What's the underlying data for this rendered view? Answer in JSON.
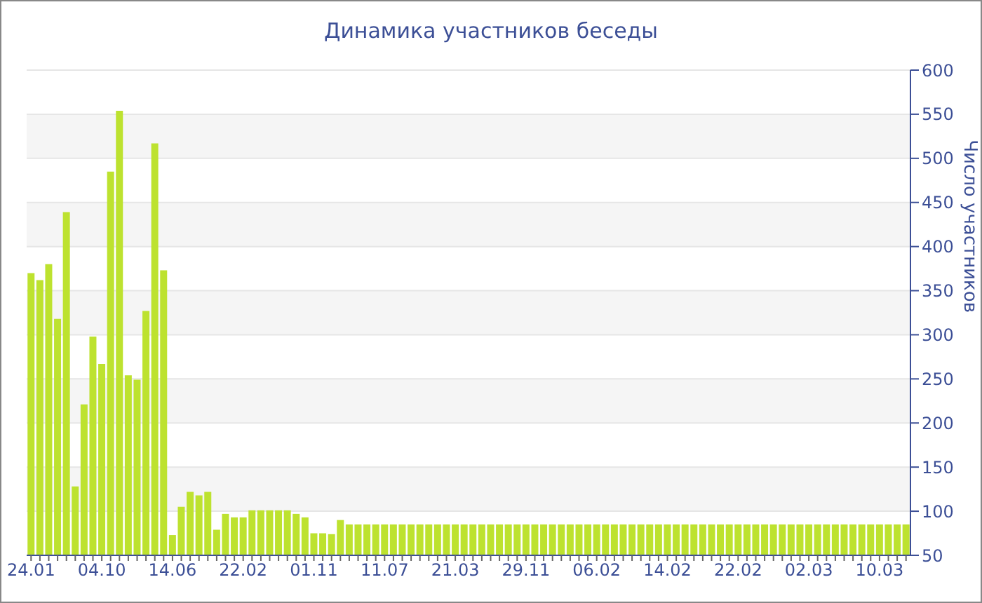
{
  "chart_data": {
    "type": "bar",
    "title": "Динамика участников беседы",
    "ylabel": "Число участников",
    "categories": [
      "24.01",
      null,
      null,
      null,
      null,
      null,
      null,
      null,
      "04.10",
      null,
      null,
      null,
      null,
      null,
      null,
      null,
      "14.06",
      null,
      null,
      null,
      null,
      null,
      null,
      null,
      "22.02",
      null,
      null,
      null,
      null,
      null,
      null,
      null,
      "01.11",
      null,
      null,
      null,
      null,
      null,
      null,
      null,
      "11.07",
      null,
      null,
      null,
      null,
      null,
      null,
      null,
      "21.03",
      null,
      null,
      null,
      null,
      null,
      null,
      null,
      "29.11",
      null,
      null,
      null,
      null,
      null,
      null,
      null,
      "06.02",
      null,
      null,
      null,
      null,
      null,
      null,
      null,
      "14.02",
      null,
      null,
      null,
      null,
      null,
      null,
      null,
      "22.02",
      null,
      null,
      null,
      null,
      null,
      null,
      null,
      "02.03",
      null,
      null,
      null,
      null,
      null,
      null,
      null,
      "10.03",
      null,
      null,
      null
    ],
    "values": [
      370,
      362,
      380,
      318,
      439,
      128,
      221,
      298,
      267,
      485,
      554,
      254,
      249,
      327,
      517,
      373,
      73,
      105,
      122,
      118,
      122,
      79,
      97,
      93,
      93,
      101,
      101,
      101,
      101,
      101,
      97,
      93,
      75,
      75,
      74,
      90,
      85,
      85,
      85,
      85,
      85,
      85,
      85,
      85,
      85,
      85,
      85,
      85,
      85,
      85,
      85,
      85,
      85,
      85,
      85,
      85,
      85,
      85,
      85,
      85,
      85,
      85,
      85,
      85,
      85,
      85,
      85,
      85,
      85,
      85,
      85,
      85,
      85,
      85,
      85,
      85,
      85,
      85,
      85,
      85,
      85,
      85,
      85,
      85,
      85,
      85,
      85,
      85,
      85,
      85,
      85,
      85,
      85,
      85,
      85,
      85,
      85,
      85,
      85,
      85
    ],
    "color": "#bde22f",
    "ylim": [
      50,
      600
    ],
    "yticks": [
      50,
      100,
      150,
      200,
      250,
      300,
      350,
      400,
      450,
      500,
      550,
      600
    ],
    "grid": "y"
  }
}
